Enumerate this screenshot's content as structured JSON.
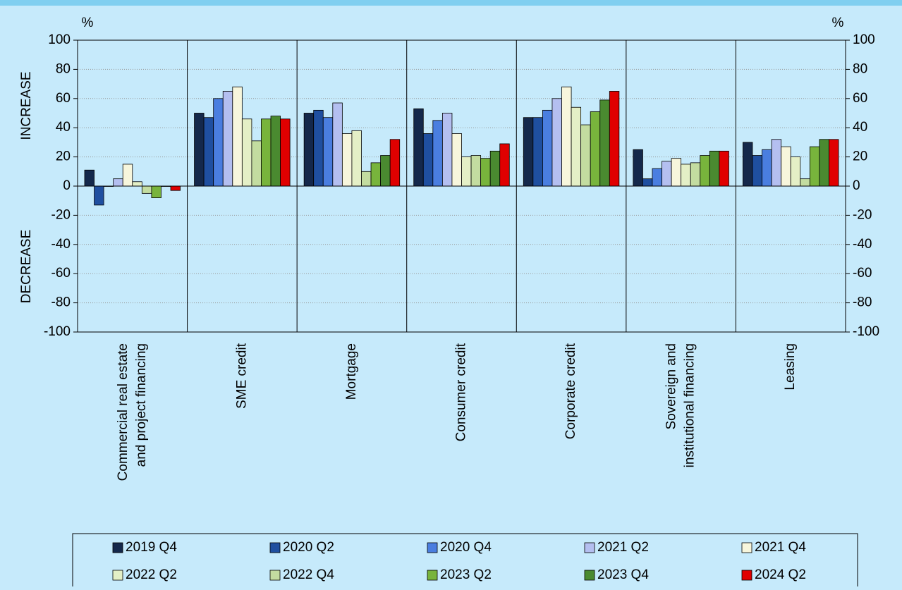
{
  "chart_data": {
    "type": "bar",
    "y_unit_left": "%",
    "y_unit_right": "%",
    "y_label_top": "INCREASE",
    "y_label_bottom": "DECREASE",
    "categories": [
      [
        "Commercial real estate",
        "and project financing"
      ],
      [
        "SME credit"
      ],
      [
        "Mortgage"
      ],
      [
        "Consumer credit"
      ],
      [
        "Corporate credit"
      ],
      [
        "Sovereign and",
        "institutional financing"
      ],
      [
        "Leasing"
      ]
    ],
    "series": [
      {
        "name": "2019 Q4",
        "color": "#14284b",
        "values": [
          11,
          50,
          50,
          53,
          47,
          25,
          30
        ]
      },
      {
        "name": "2020 Q2",
        "color": "#1f4fa0",
        "values": [
          -13,
          47,
          52,
          36,
          47,
          5,
          21
        ]
      },
      {
        "name": "2020 Q4",
        "color": "#4a7ee0",
        "values": [
          0,
          60,
          47,
          45,
          52,
          12,
          25
        ]
      },
      {
        "name": "2021 Q2",
        "color": "#b4bff0",
        "values": [
          5,
          65,
          57,
          50,
          60,
          17,
          32
        ]
      },
      {
        "name": "2021 Q4",
        "color": "#f7f6dc",
        "values": [
          15,
          68,
          36,
          36,
          68,
          19,
          27
        ]
      },
      {
        "name": "2022 Q2",
        "color": "#e4efc6",
        "values": [
          3,
          46,
          38,
          20,
          54,
          15,
          20
        ]
      },
      {
        "name": "2022 Q4",
        "color": "#c3dca0",
        "values": [
          -5,
          31,
          10,
          21,
          42,
          16,
          5
        ]
      },
      {
        "name": "2023 Q2",
        "color": "#78b43c",
        "values": [
          -8,
          46,
          16,
          19,
          51,
          21,
          27
        ]
      },
      {
        "name": "2023 Q4",
        "color": "#4a8a30",
        "values": [
          0,
          48,
          21,
          24,
          59,
          24,
          32
        ]
      },
      {
        "name": "2024 Q2",
        "color": "#e00000",
        "values": [
          -3,
          46,
          32,
          29,
          65,
          24,
          32
        ]
      }
    ],
    "ylim": [
      -100,
      100
    ],
    "yticks": [
      -100,
      -80,
      -60,
      -40,
      -20,
      0,
      20,
      40,
      60,
      80,
      100
    ],
    "grid": true
  }
}
